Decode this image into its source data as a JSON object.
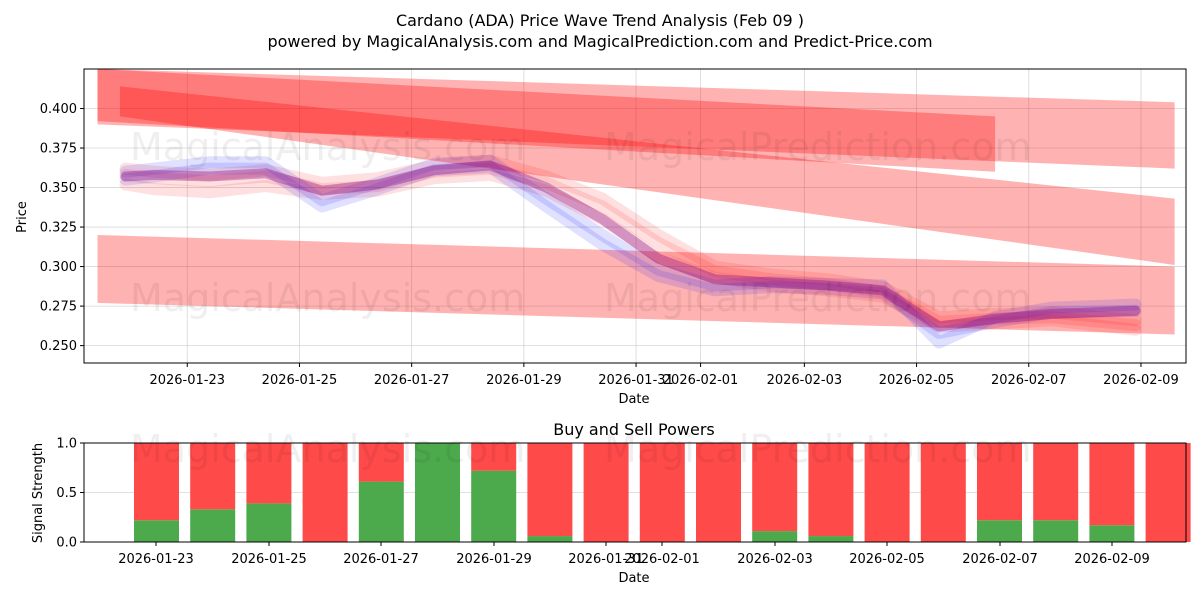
{
  "title": "Cardano (ADA) Price Wave Trend Analysis (Feb 09 )",
  "subtitle": "powered by MagicalAnalysis.com and MagicalPrediction.com and Predict-Price.com",
  "watermarks": [
    "MagicalAnalysis.com",
    "MagicalPrediction.com"
  ],
  "chart_data": [
    {
      "type": "area",
      "title": "",
      "xlabel": "Date",
      "ylabel": "Price",
      "ylim": [
        0.239,
        0.425
      ],
      "xlim": [
        "2026-01-20.8",
        "2026-02-09.8"
      ],
      "grid": true,
      "x_ticks": [
        "2026-01-23",
        "2026-01-25",
        "2026-01-27",
        "2026-01-29",
        "2026-01-31",
        "2026-02-01",
        "2026-02-03",
        "2026-02-05",
        "2026-02-07",
        "2026-02-09"
      ],
      "y_ticks": [
        0.25,
        0.275,
        0.3,
        0.325,
        0.35,
        0.375,
        0.4
      ],
      "colors": {
        "trend": "#ff0000",
        "blue_wave": "#0000ff",
        "purple": "#800080"
      },
      "trend_bands": [
        {
          "name": "upper-band-1",
          "x": [
            0,
            19.2
          ],
          "y_lower": [
            0.39,
            0.362
          ],
          "y_upper": [
            0.425,
            0.404
          ]
        },
        {
          "name": "upper-band-2",
          "x": [
            0.4,
            19.2
          ],
          "y_lower": [
            0.395,
            0.301
          ],
          "y_upper": [
            0.414,
            0.343
          ]
        },
        {
          "name": "lower-band",
          "x": [
            0,
            19.2
          ],
          "y_lower": [
            0.277,
            0.257
          ],
          "y_upper": [
            0.32,
            0.3
          ]
        },
        {
          "name": "upper-band-3",
          "x": [
            0,
            16
          ],
          "y_lower": [
            0.392,
            0.36
          ],
          "y_upper": [
            0.425,
            0.395
          ]
        }
      ],
      "days": [
        0.5,
        1,
        2,
        3,
        4,
        5,
        6,
        7,
        8,
        9,
        10,
        11,
        12,
        13,
        14,
        15,
        16,
        17,
        18.5
      ],
      "price_series": [
        {
          "name": "wave-red-1",
          "values": [
            0.358,
            0.356,
            0.354,
            0.357,
            0.349,
            0.351,
            0.36,
            0.362,
            0.353,
            0.338,
            0.315,
            0.297,
            0.292,
            0.289,
            0.284,
            0.265,
            0.267,
            0.268,
            0.263
          ]
        },
        {
          "name": "wave-red-2",
          "values": [
            0.352,
            0.349,
            0.347,
            0.351,
            0.346,
            0.348,
            0.356,
            0.358,
            0.348,
            0.33,
            0.306,
            0.293,
            0.288,
            0.285,
            0.281,
            0.262,
            0.264,
            0.266,
            0.26
          ]
        },
        {
          "name": "wave-red-3",
          "values": [
            0.362,
            0.36,
            0.358,
            0.361,
            0.353,
            0.356,
            0.364,
            0.367,
            0.357,
            0.343,
            0.32,
            0.3,
            0.295,
            0.292,
            0.287,
            0.268,
            0.27,
            0.271,
            0.266
          ]
        },
        {
          "name": "wave-blue-1",
          "values": [
            0.36,
            0.362,
            0.366,
            0.366,
            0.342,
            0.353,
            0.365,
            0.367,
            0.343,
            0.32,
            0.298,
            0.288,
            0.29,
            0.289,
            0.288,
            0.252,
            0.268,
            0.274,
            0.276
          ]
        },
        {
          "name": "wave-blue-2",
          "values": [
            0.355,
            0.357,
            0.362,
            0.362,
            0.338,
            0.349,
            0.361,
            0.363,
            0.338,
            0.314,
            0.294,
            0.285,
            0.287,
            0.286,
            0.283,
            0.258,
            0.265,
            0.271,
            0.272
          ]
        },
        {
          "name": "wave-purple",
          "values": [
            0.357,
            0.358,
            0.357,
            0.359,
            0.348,
            0.352,
            0.361,
            0.364,
            0.35,
            0.33,
            0.305,
            0.292,
            0.29,
            0.288,
            0.285,
            0.262,
            0.267,
            0.27,
            0.272
          ]
        }
      ]
    },
    {
      "type": "bar",
      "title": "Buy and Sell Powers",
      "xlabel": "Date",
      "ylabel": "Signal Strength",
      "ylim": [
        0,
        1.0
      ],
      "grid": true,
      "x_ticks": [
        "2026-01-23",
        "2026-01-25",
        "2026-01-27",
        "2026-01-29",
        "2026-01-31",
        "2026-02-01",
        "2026-02-03",
        "2026-02-05",
        "2026-02-07",
        "2026-02-09"
      ],
      "y_ticks": [
        "0.0",
        "0.5",
        "1.0"
      ],
      "categories": [
        "2026-01-22",
        "2026-01-23",
        "2026-01-24",
        "2026-01-25",
        "2026-01-26",
        "2026-01-27",
        "2026-01-28",
        "2026-01-29",
        "2026-01-30",
        "2026-01-31",
        "2026-02-01",
        "2026-02-02",
        "2026-02-03",
        "2026-02-04",
        "2026-02-05",
        "2026-02-06",
        "2026-02-07",
        "2026-02-08",
        "2026-02-09"
      ],
      "series": [
        {
          "name": "Buy",
          "color": "#4caa4c",
          "values": [
            0.22,
            0.33,
            0.39,
            0.0,
            0.61,
            1.0,
            0.72,
            0.06,
            0.0,
            0.0,
            0.0,
            0.11,
            0.06,
            0.0,
            0.0,
            0.22,
            0.22,
            0.17,
            0.0
          ]
        },
        {
          "name": "Sell",
          "color": "#ff4a4a",
          "values": [
            0.78,
            0.67,
            0.61,
            1.0,
            0.39,
            0.0,
            0.28,
            0.94,
            1.0,
            1.0,
            1.0,
            0.89,
            0.94,
            1.0,
            1.0,
            0.78,
            0.78,
            0.83,
            1.0
          ]
        }
      ]
    }
  ]
}
